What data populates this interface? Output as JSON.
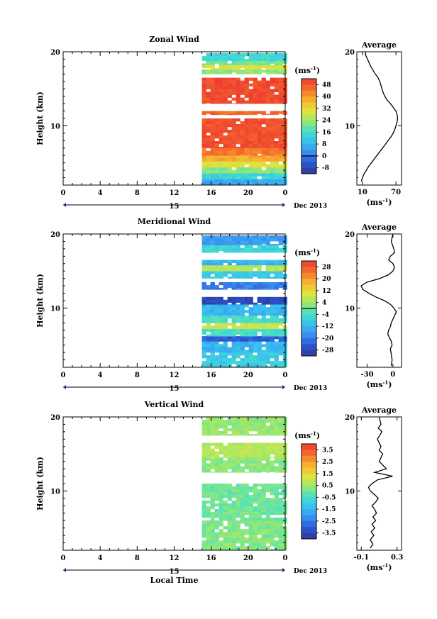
{
  "chart_data": [
    {
      "type": "heatmap",
      "title": "Zonal Wind",
      "ylabel": "Height (km)",
      "unit_label": "(ms",
      "unit_exp": "-1",
      "unit_close": ")",
      "x_ticks": [
        "0",
        "4",
        "8",
        "12",
        "16",
        "20",
        "0"
      ],
      "x_date_center": "15",
      "x_date_right": "Dec 2013",
      "y_ticks": [
        "20",
        "10"
      ],
      "ylim": [
        2,
        20
      ],
      "xlim": [
        0,
        24
      ],
      "data_start_hour": 15,
      "colorbar": {
        "labels": [
          "48",
          "40",
          "32",
          "24",
          "16",
          "8",
          "0",
          "-8"
        ],
        "min": -12,
        "max": 52,
        "contour": 0
      },
      "bands": [
        {
          "y0": 2.0,
          "y1": 2.8,
          "value": 6
        },
        {
          "y0": 2.8,
          "y1": 3.6,
          "value": 14
        },
        {
          "y0": 3.6,
          "y1": 4.4,
          "value": 22
        },
        {
          "y0": 4.4,
          "y1": 5.2,
          "value": 30
        },
        {
          "y0": 5.2,
          "y1": 6.0,
          "value": 38
        },
        {
          "y0": 6.0,
          "y1": 7.0,
          "value": 44
        },
        {
          "y0": 7.0,
          "y1": 11.0,
          "value": 49
        },
        {
          "y0": 11.5,
          "y1": 12.0,
          "value": 46
        },
        {
          "y0": 13.0,
          "y1": 16.5,
          "value": 50
        },
        {
          "y0": 17.0,
          "y1": 17.6,
          "value": 22
        },
        {
          "y0": 17.6,
          "y1": 18.2,
          "value": 30
        },
        {
          "y0": 18.2,
          "y1": 18.8,
          "value": 20
        },
        {
          "y0": 18.8,
          "y1": 19.8,
          "value": 14
        }
      ],
      "profile": {
        "title": "Average",
        "x_ticks": [
          "10",
          "70"
        ],
        "xlim": [
          0,
          80
        ],
        "y_ticks": [
          "20",
          "10"
        ],
        "xlabel": "(ms",
        "xlabel_exp": "-1",
        "xlabel_close": ")",
        "x": [
          8,
          10,
          13,
          17,
          21,
          26,
          31,
          36,
          41,
          46,
          51,
          56,
          61,
          65,
          68,
          70,
          72,
          73,
          72,
          70,
          65,
          60,
          54,
          50,
          47,
          45,
          43,
          41,
          38,
          33,
          25,
          19,
          16,
          15
        ],
        "y": [
          2.5,
          3.0,
          3.5,
          4.0,
          4.5,
          5.0,
          5.5,
          6.0,
          6.5,
          7.0,
          7.5,
          8.0,
          8.5,
          9.0,
          9.5,
          10.0,
          10.5,
          11.0,
          11.5,
          12.0,
          12.5,
          13.0,
          13.5,
          14.0,
          14.5,
          15.0,
          15.5,
          16.0,
          16.5,
          17.0,
          18.0,
          19.0,
          19.5,
          20.0
        ]
      }
    },
    {
      "type": "heatmap",
      "title": "Meridional Wind",
      "ylabel": "Height (km)",
      "unit_label": "(ms",
      "unit_exp": "-1",
      "unit_close": ")",
      "x_ticks": [
        "0",
        "4",
        "8",
        "12",
        "16",
        "20",
        "0"
      ],
      "x_date_center": "15",
      "x_date_right": "Dec 2013",
      "y_ticks": [
        "20",
        "10"
      ],
      "ylim": [
        2,
        20
      ],
      "xlim": [
        0,
        24
      ],
      "data_start_hour": 15,
      "colorbar": {
        "labels": [
          "28",
          "20",
          "12",
          "4",
          "-4",
          "-12",
          "-20",
          "-28"
        ],
        "min": -32,
        "max": 32,
        "contour": 0
      },
      "bands": [
        {
          "y0": 2.0,
          "y1": 4.0,
          "value": -8
        },
        {
          "y0": 4.0,
          "y1": 5.5,
          "value": -12
        },
        {
          "y0": 5.5,
          "y1": 6.2,
          "value": -24
        },
        {
          "y0": 6.2,
          "y1": 7.2,
          "value": -4
        },
        {
          "y0": 7.2,
          "y1": 8.0,
          "value": 8
        },
        {
          "y0": 8.0,
          "y1": 9.0,
          "value": -4
        },
        {
          "y0": 9.0,
          "y1": 10.5,
          "value": -12
        },
        {
          "y0": 10.5,
          "y1": 11.5,
          "value": -28
        },
        {
          "y0": 12.5,
          "y1": 13.5,
          "value": -20
        },
        {
          "y0": 14.0,
          "y1": 15.0,
          "value": -8
        },
        {
          "y0": 15.0,
          "y1": 15.8,
          "value": 6
        },
        {
          "y0": 15.8,
          "y1": 16.5,
          "value": -12
        },
        {
          "y0": 17.5,
          "y1": 18.5,
          "value": -6
        },
        {
          "y0": 18.5,
          "y1": 19.8,
          "value": -16
        }
      ],
      "profile": {
        "title": "Average",
        "x_ticks": [
          "-30",
          "0"
        ],
        "xlim": [
          -42,
          10
        ],
        "y_ticks": [
          "20",
          "10"
        ],
        "xlabel": "(ms",
        "xlabel_exp": "-1",
        "xlabel_close": ")",
        "x": [
          -2,
          -1,
          -2,
          -3,
          -1,
          -2,
          -4,
          -6,
          -5,
          -3,
          -2,
          0,
          2,
          4,
          1,
          -3,
          -10,
          -20,
          -28,
          -35,
          -37,
          -30,
          -15,
          -5,
          0,
          2,
          0,
          -5,
          -3,
          2,
          1,
          -2,
          0
        ],
        "y": [
          2.2,
          3.0,
          3.8,
          4.5,
          5.0,
          5.5,
          6.0,
          6.5,
          7.0,
          7.5,
          8.0,
          8.5,
          9.0,
          9.5,
          10.0,
          10.5,
          11.0,
          11.5,
          12.0,
          12.5,
          13.0,
          13.5,
          14.0,
          14.5,
          15.0,
          15.5,
          16.0,
          16.5,
          17.0,
          17.5,
          18.0,
          19.0,
          20.0
        ]
      }
    },
    {
      "type": "heatmap",
      "title": "Vertical Wind",
      "ylabel": "Height (km)",
      "unit_label": "(ms",
      "unit_exp": "-1",
      "unit_close": ")",
      "x_ticks": [
        "0",
        "4",
        "8",
        "12",
        "16",
        "20",
        "0"
      ],
      "x_date_center": "15",
      "x_date_right": "Dec 2013",
      "xlabel": "Local Time",
      "y_ticks": [
        "20",
        "10"
      ],
      "ylim": [
        2,
        20
      ],
      "xlim": [
        0,
        24
      ],
      "data_start_hour": 15,
      "colorbar": {
        "labels": [
          "3.5",
          "2.5",
          "1.5",
          "0.5",
          "-0.5",
          "-1.5",
          "-2.5",
          "-3.5"
        ],
        "min": -4,
        "max": 4,
        "contour": null
      },
      "bands": [
        {
          "y0": 2.0,
          "y1": 6.0,
          "value": 0.2
        },
        {
          "y0": 6.0,
          "y1": 11.0,
          "value": 0.0
        },
        {
          "y0": 12.5,
          "y1": 14.5,
          "value": 0.3
        },
        {
          "y0": 14.5,
          "y1": 16.5,
          "value": 0.7
        },
        {
          "y0": 17.5,
          "y1": 20.0,
          "value": 0.4
        }
      ],
      "profile": {
        "title": "Average",
        "x_ticks": [
          "-0.1",
          "0.3"
        ],
        "xlim": [
          -0.15,
          0.35
        ],
        "y_ticks": [
          "20",
          "10"
        ],
        "xlabel": "(ms",
        "xlabel_exp": "-1",
        "xlabel_close": ")",
        "x": [
          0.0,
          0.03,
          0.0,
          0.04,
          0.01,
          0.05,
          0.02,
          0.06,
          0.03,
          0.07,
          0.05,
          0.02,
          0.06,
          0.09,
          0.05,
          0.0,
          -0.02,
          0.02,
          0.08,
          0.25,
          0.05,
          0.18,
          0.1,
          0.14,
          0.1,
          0.12,
          0.08,
          0.13,
          0.09,
          0.12,
          0.1
        ],
        "y": [
          2.3,
          2.8,
          3.4,
          4.0,
          4.5,
          5.0,
          5.5,
          6.0,
          6.5,
          7.0,
          7.5,
          8.0,
          8.5,
          9.0,
          9.5,
          10.0,
          10.5,
          11.0,
          11.5,
          12.0,
          12.5,
          13.0,
          14.0,
          15.0,
          15.5,
          16.0,
          17.0,
          18.0,
          18.5,
          19.0,
          20.0
        ]
      }
    }
  ]
}
